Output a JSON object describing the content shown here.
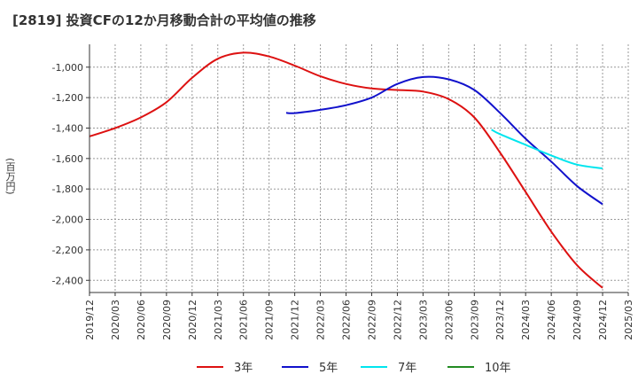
{
  "header": {
    "title": "[2819]  投資CFの12か月移動合計の平均値の推移"
  },
  "chart_data": {
    "type": "line",
    "title": "[2819]  投資CFの12か月移動合計の平均値の推移",
    "ylabel": "(百万円)",
    "xlabel": "",
    "ylim": [
      -2480,
      -850
    ],
    "yticks": [
      -1000,
      -1200,
      -1400,
      -1600,
      -1800,
      -2000,
      -2200,
      -2400
    ],
    "ytick_labels": [
      "-1,000",
      "-1,200",
      "-1,400",
      "-1,600",
      "-1,800",
      "-2,000",
      "-2,200",
      "-2,400"
    ],
    "xlim": [
      "2019-12",
      "2025-03"
    ],
    "xticks": [
      "2019/12",
      "2020/03",
      "2020/06",
      "2020/09",
      "2020/12",
      "2021/03",
      "2021/06",
      "2021/09",
      "2021/12",
      "2022/03",
      "2022/06",
      "2022/09",
      "2022/12",
      "2023/03",
      "2023/06",
      "2023/09",
      "2023/12",
      "2024/03",
      "2024/06",
      "2024/09",
      "2024/12",
      "2025/03"
    ],
    "grid": true,
    "legend_position": "bottom",
    "series": [
      {
        "name": "3年",
        "color": "#dd1111",
        "points": [
          [
            "2019-12",
            -1455
          ],
          [
            "2020-03",
            -1400
          ],
          [
            "2020-06",
            -1330
          ],
          [
            "2020-09",
            -1230
          ],
          [
            "2020-12",
            -1070
          ],
          [
            "2021-03",
            -945
          ],
          [
            "2021-06",
            -905
          ],
          [
            "2021-09",
            -930
          ],
          [
            "2021-12",
            -990
          ],
          [
            "2022-03",
            -1060
          ],
          [
            "2022-06",
            -1110
          ],
          [
            "2022-09",
            -1140
          ],
          [
            "2022-12",
            -1150
          ],
          [
            "2023-03",
            -1160
          ],
          [
            "2023-06",
            -1210
          ],
          [
            "2023-09",
            -1330
          ],
          [
            "2023-12",
            -1560
          ],
          [
            "2024-03",
            -1820
          ],
          [
            "2024-06",
            -2080
          ],
          [
            "2024-09",
            -2300
          ],
          [
            "2024-12",
            -2450
          ]
        ]
      },
      {
        "name": "5年",
        "color": "#1111cc",
        "points": [
          [
            "2021-11",
            -1300
          ],
          [
            "2021-12",
            -1302
          ],
          [
            "2022-03",
            -1280
          ],
          [
            "2022-06",
            -1250
          ],
          [
            "2022-09",
            -1200
          ],
          [
            "2022-12",
            -1110
          ],
          [
            "2023-03",
            -1065
          ],
          [
            "2023-06",
            -1080
          ],
          [
            "2023-09",
            -1150
          ],
          [
            "2023-12",
            -1300
          ],
          [
            "2024-03",
            -1470
          ],
          [
            "2024-06",
            -1620
          ],
          [
            "2024-09",
            -1780
          ],
          [
            "2024-12",
            -1900
          ]
        ]
      },
      {
        "name": "7年",
        "color": "#00e5ee",
        "points": [
          [
            "2023-11",
            -1410
          ],
          [
            "2023-12",
            -1440
          ],
          [
            "2024-03",
            -1510
          ],
          [
            "2024-06",
            -1580
          ],
          [
            "2024-09",
            -1640
          ],
          [
            "2024-12",
            -1665
          ]
        ]
      },
      {
        "name": "10年",
        "color": "#228b22",
        "points": []
      }
    ]
  }
}
